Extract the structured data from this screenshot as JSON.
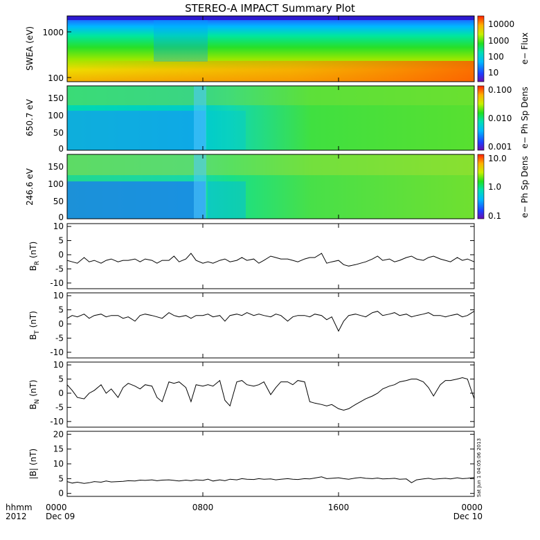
{
  "title": "STEREO-A IMPACT Summary Plot",
  "timestamp": "Sat Jun 1 04:05:06 2013",
  "chart_data": [
    {
      "type": "heatmap",
      "ylabel": "SWEA (eV)",
      "y_scale": "log",
      "y_ticks": [
        "1000",
        "100"
      ],
      "colorbar_label": "e− Flux",
      "colorbar_scale": "log",
      "colorbar_ticks": [
        "10000",
        "1000",
        "100",
        "10"
      ]
    },
    {
      "type": "heatmap",
      "ylabel": "650.7 eV",
      "y_range": [
        0,
        180
      ],
      "y_ticks": [
        "150",
        "100",
        "50",
        "0"
      ],
      "colorbar_label": "e− Ph Sp Dens",
      "colorbar_scale": "log",
      "colorbar_ticks": [
        "0.100",
        "0.010",
        "0.001"
      ]
    },
    {
      "type": "heatmap",
      "ylabel": "246.6 eV",
      "y_range": [
        0,
        180
      ],
      "y_ticks": [
        "150",
        "100",
        "50",
        "0"
      ],
      "colorbar_label": "e− Ph Sp Dens",
      "colorbar_scale": "log",
      "colorbar_ticks": [
        "10.0",
        "1.0",
        "0.1"
      ]
    },
    {
      "type": "line",
      "ylabel": "B",
      "ylabel_sub": "R",
      "ylabel_unit": " (nT)",
      "ylim": [
        -12,
        11
      ],
      "y_ticks": [
        10,
        5,
        0,
        -5,
        -10
      ],
      "x": [
        0,
        0.3,
        0.6,
        1,
        1.3,
        1.6,
        2,
        2.3,
        2.6,
        3,
        3.3,
        3.6,
        4,
        4.3,
        4.6,
        5,
        5.3,
        5.6,
        6,
        6.3,
        6.6,
        7,
        7.3,
        7.6,
        8,
        8.3,
        8.6,
        9,
        9.3,
        9.6,
        10,
        10.3,
        10.6,
        11,
        11.3,
        11.6,
        12,
        12.3,
        12.6,
        13,
        13.3,
        13.6,
        14,
        14.3,
        14.6,
        15,
        15.3,
        15.6,
        16,
        16.3,
        16.6,
        17,
        17.3,
        17.6,
        18,
        18.3,
        18.6,
        19,
        19.3,
        19.6,
        20,
        20.3,
        20.6,
        21,
        21.3,
        21.6,
        22,
        22.3,
        22.6,
        23,
        23.3,
        23.6,
        24
      ],
      "values": [
        -2,
        -2.5,
        -3,
        -1,
        -2.5,
        -2,
        -3,
        -2,
        -1.5,
        -2.5,
        -2,
        -2,
        -1.5,
        -2.5,
        -1.5,
        -2,
        -3,
        -2,
        -2,
        -0.5,
        -2.5,
        -1.5,
        0.5,
        -2,
        -3,
        -2.5,
        -3,
        -2,
        -1.5,
        -2.5,
        -2,
        -1,
        -2,
        -1.5,
        -3,
        -2,
        -0.5,
        -1,
        -1.5,
        -1.5,
        -2,
        -2.5,
        -1.5,
        -1,
        -1,
        0.5,
        -3,
        -2.5,
        -2,
        -3.5,
        -4,
        -3.5,
        -3,
        -2.5,
        -1.5,
        -0.5,
        -2,
        -1.5,
        -2.5,
        -2,
        -1,
        -0.5,
        -1.5,
        -2,
        -1,
        -0.5,
        -1.5,
        -2,
        -2.5,
        -1,
        -2,
        -1.5,
        -2.5
      ]
    },
    {
      "type": "line",
      "ylabel": "B",
      "ylabel_sub": "T",
      "ylabel_unit": " (nT)",
      "ylim": [
        -12,
        11
      ],
      "y_ticks": [
        10,
        5,
        0,
        -5,
        -10
      ],
      "x": [
        0,
        0.3,
        0.6,
        1,
        1.3,
        1.6,
        2,
        2.3,
        2.6,
        3,
        3.3,
        3.6,
        4,
        4.3,
        4.6,
        5,
        5.3,
        5.6,
        6,
        6.3,
        6.6,
        7,
        7.3,
        7.6,
        8,
        8.3,
        8.6,
        9,
        9.3,
        9.6,
        10,
        10.3,
        10.6,
        11,
        11.3,
        11.6,
        12,
        12.3,
        12.6,
        13,
        13.3,
        13.6,
        14,
        14.3,
        14.6,
        15,
        15.3,
        15.6,
        16,
        16.3,
        16.6,
        17,
        17.3,
        17.6,
        18,
        18.3,
        18.6,
        19,
        19.3,
        19.6,
        20,
        20.3,
        20.6,
        21,
        21.3,
        21.6,
        22,
        22.3,
        22.6,
        23,
        23.3,
        23.6,
        24
      ],
      "values": [
        2,
        3,
        2.5,
        3.5,
        2,
        3,
        3.5,
        2.5,
        3,
        3,
        2,
        2.5,
        1,
        3,
        3.5,
        3,
        2.5,
        2,
        4,
        3,
        2.5,
        3,
        2,
        3,
        3,
        3.5,
        2.5,
        3,
        1,
        3,
        3.5,
        3,
        4,
        3,
        3.5,
        3,
        2.5,
        3.5,
        3,
        1,
        2.5,
        3,
        3,
        2.5,
        3.5,
        3,
        1.5,
        2.5,
        -2.5,
        1,
        3,
        3.5,
        3,
        2.5,
        4,
        4.5,
        3,
        3.5,
        4,
        3,
        3.5,
        2.5,
        3,
        3.5,
        4,
        3,
        3,
        2.5,
        3,
        3.5,
        2.5,
        3,
        4.5
      ]
    },
    {
      "type": "line",
      "ylabel": "B",
      "ylabel_sub": "N",
      "ylabel_unit": " (nT)",
      "ylim": [
        -12,
        11
      ],
      "y_ticks": [
        10,
        5,
        0,
        -5,
        -10
      ],
      "x": [
        0,
        0.3,
        0.6,
        1,
        1.3,
        1.6,
        2,
        2.3,
        2.6,
        3,
        3.3,
        3.6,
        4,
        4.3,
        4.6,
        5,
        5.3,
        5.6,
        6,
        6.3,
        6.6,
        7,
        7.3,
        7.6,
        8,
        8.3,
        8.6,
        9,
        9.3,
        9.6,
        10,
        10.3,
        10.6,
        11,
        11.3,
        11.6,
        12,
        12.3,
        12.6,
        13,
        13.3,
        13.6,
        14,
        14.3,
        14.6,
        15,
        15.3,
        15.6,
        16,
        16.3,
        16.6,
        17,
        17.3,
        17.6,
        18,
        18.3,
        18.6,
        19,
        19.3,
        19.6,
        20,
        20.3,
        20.6,
        21,
        21.3,
        21.6,
        22,
        22.3,
        22.6,
        23,
        23.3,
        23.6,
        24
      ],
      "values": [
        3,
        1,
        -1.5,
        -2,
        0,
        1,
        3,
        0,
        1.5,
        -1.5,
        2,
        3.5,
        2.5,
        1.5,
        3,
        2.5,
        -1.5,
        -3,
        4,
        3.5,
        4,
        2,
        -3,
        3,
        2.5,
        3,
        2.5,
        4.5,
        -2.5,
        -4.5,
        4,
        4.5,
        3,
        2.5,
        3,
        4,
        -0.5,
        2,
        4,
        4,
        3,
        4.5,
        4,
        -3,
        -3.5,
        -4,
        -4.5,
        -4,
        -5.5,
        -6,
        -5.5,
        -4,
        -3,
        -2,
        -1,
        0,
        1.5,
        2.5,
        3,
        4,
        4.5,
        5,
        5,
        4,
        2,
        -1,
        3,
        4.5,
        4.5,
        5,
        5.5,
        5,
        -2
      ]
    },
    {
      "type": "line",
      "ylabel": "|B| (nT)",
      "ylim": [
        -1,
        21
      ],
      "y_ticks": [
        20,
        15,
        10,
        5,
        0
      ],
      "x": [
        0,
        0.3,
        0.6,
        1,
        1.3,
        1.6,
        2,
        2.3,
        2.6,
        3,
        3.3,
        3.6,
        4,
        4.3,
        4.6,
        5,
        5.3,
        5.6,
        6,
        6.3,
        6.6,
        7,
        7.3,
        7.6,
        8,
        8.3,
        8.6,
        9,
        9.3,
        9.6,
        10,
        10.3,
        10.6,
        11,
        11.3,
        11.6,
        12,
        12.3,
        12.6,
        13,
        13.3,
        13.6,
        14,
        14.3,
        14.6,
        15,
        15.3,
        15.6,
        16,
        16.3,
        16.6,
        17,
        17.3,
        17.6,
        18,
        18.3,
        18.6,
        19,
        19.3,
        19.6,
        20,
        20.3,
        20.6,
        21,
        21.3,
        21.6,
        22,
        22.3,
        22.6,
        23,
        23.3,
        23.6,
        24
      ],
      "values": [
        4,
        3.5,
        3.8,
        3.4,
        3.6,
        4,
        3.8,
        4.2,
        3.9,
        4,
        4.1,
        4.3,
        4.2,
        4.5,
        4.4,
        4.6,
        4.3,
        4.5,
        4.6,
        4.4,
        4.2,
        4.5,
        4.3,
        4.6,
        4.4,
        4.8,
        4.2,
        4.6,
        4.3,
        4.8,
        4.6,
        5,
        4.8,
        4.7,
        5,
        4.8,
        4.9,
        4.6,
        4.8,
        5,
        4.8,
        4.7,
        5,
        4.9,
        5.2,
        5.6,
        5,
        5.1,
        5.3,
        5,
        4.8,
        5.2,
        5.4,
        5.1,
        5,
        5.2,
        4.9,
        5,
        5.1,
        4.8,
        4.9,
        3.6,
        4.6,
        4.9,
        5.1,
        4.8,
        5,
        5.1,
        4.9,
        5.3,
        5,
        5.1,
        5.4
      ]
    }
  ],
  "x_axis": {
    "row1_label": "hhmm",
    "row2_label": "2012",
    "ticks": [
      {
        "t": 0,
        "label": "0000",
        "sub": "Dec 09"
      },
      {
        "t": 8,
        "label": "0800",
        "sub": ""
      },
      {
        "t": 16,
        "label": "1600",
        "sub": ""
      },
      {
        "t": 24,
        "label": "0000",
        "sub": "Dec 10"
      }
    ]
  }
}
